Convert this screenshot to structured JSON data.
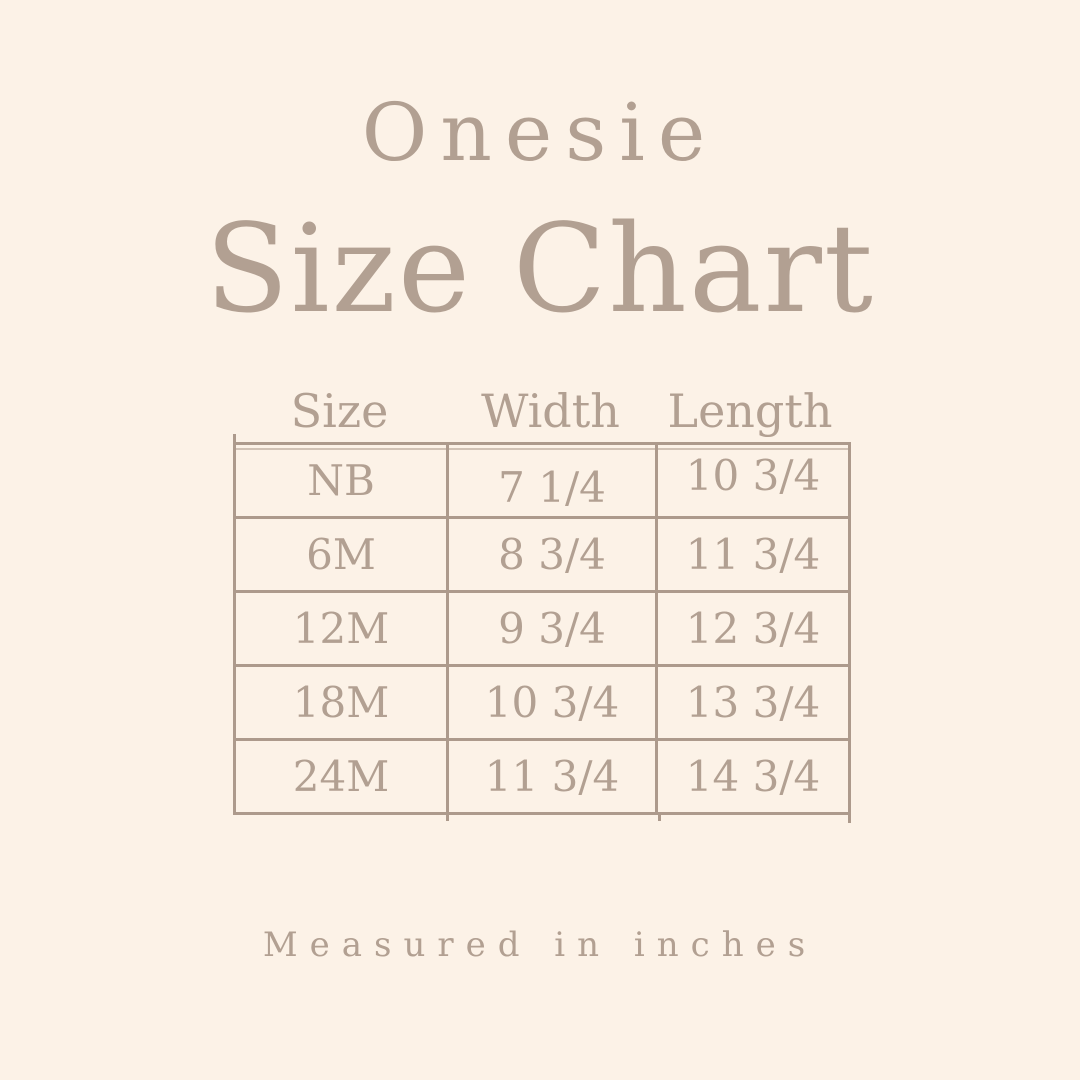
{
  "title": "Onesie",
  "main_title": "Size Chart",
  "footer": "Measured in inches",
  "colors": {
    "background": "#fcf2e7",
    "text": "#b2a092",
    "border": "#ad9a8c"
  },
  "table": {
    "headers": [
      "Size",
      "Width",
      "Length"
    ],
    "rows": [
      [
        "NB",
        "7 1/4",
        "10 3/4"
      ],
      [
        "6M",
        "8 3/4",
        "11 3/4"
      ],
      [
        "12M",
        "9 3/4",
        "12 3/4"
      ],
      [
        "18M",
        "10 3/4",
        "13 3/4"
      ],
      [
        "24M",
        "11 3/4",
        "14 3/4"
      ]
    ]
  },
  "chart_data": {
    "type": "table",
    "title": "Onesie Size Chart",
    "columns": [
      "Size",
      "Width",
      "Length"
    ],
    "rows": [
      {
        "size": "NB",
        "width": "7 1/4",
        "length": "10 3/4"
      },
      {
        "size": "6M",
        "width": "8 3/4",
        "length": "11 3/4"
      },
      {
        "size": "12M",
        "width": "9 3/4",
        "length": "12 3/4"
      },
      {
        "size": "18M",
        "width": "10 3/4",
        "length": "13 3/4"
      },
      {
        "size": "24M",
        "width": "11 3/4",
        "length": "14 3/4"
      }
    ],
    "units": "inches",
    "note": "Measured in inches"
  }
}
